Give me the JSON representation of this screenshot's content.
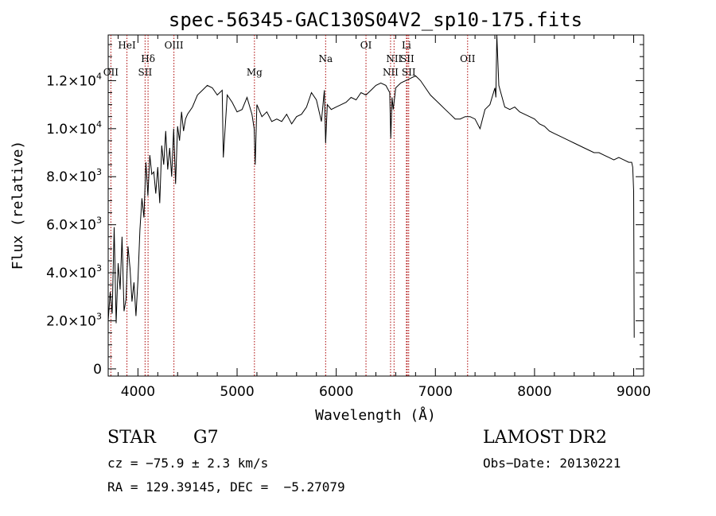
{
  "chart_data": {
    "type": "line",
    "title": "spec-56345-GAC130S04V2_sp10-175.fits",
    "xlabel": "Wavelength (Å)",
    "ylabel": "Flux (relative)",
    "xlim": [
      3700,
      9100
    ],
    "ylim": [
      -300,
      13900
    ],
    "xticks": [
      {
        "value": 4000,
        "label": "4000"
      },
      {
        "value": 5000,
        "label": "5000"
      },
      {
        "value": 6000,
        "label": "6000"
      },
      {
        "value": 7000,
        "label": "7000"
      },
      {
        "value": 8000,
        "label": "8000"
      },
      {
        "value": 9000,
        "label": "9000"
      }
    ],
    "yticks": [
      {
        "value": 0,
        "mantissa": "0",
        "exponent": ""
      },
      {
        "value": 2000,
        "mantissa": "2.0×10",
        "exponent": "3"
      },
      {
        "value": 4000,
        "mantissa": "4.0×10",
        "exponent": "3"
      },
      {
        "value": 6000,
        "mantissa": "6.0×10",
        "exponent": "3"
      },
      {
        "value": 8000,
        "mantissa": "8.0×10",
        "exponent": "3"
      },
      {
        "value": 10000,
        "mantissa": "1.0×10",
        "exponent": "4"
      },
      {
        "value": 12000,
        "mantissa": "1.2×10",
        "exponent": "4"
      }
    ],
    "spectrum": {
      "x": [
        3700,
        3720,
        3740,
        3760,
        3780,
        3800,
        3820,
        3840,
        3860,
        3880,
        3900,
        3920,
        3940,
        3960,
        3980,
        4000,
        4020,
        4040,
        4060,
        4080,
        4100,
        4120,
        4140,
        4160,
        4180,
        4200,
        4220,
        4240,
        4260,
        4280,
        4300,
        4320,
        4340,
        4360,
        4380,
        4400,
        4420,
        4440,
        4460,
        4480,
        4500,
        4550,
        4600,
        4650,
        4700,
        4750,
        4800,
        4850,
        4861,
        4900,
        4950,
        5000,
        5050,
        5100,
        5150,
        5172,
        5183,
        5200,
        5250,
        5300,
        5350,
        5400,
        5450,
        5500,
        5550,
        5600,
        5650,
        5700,
        5750,
        5800,
        5850,
        5880,
        5893,
        5910,
        5950,
        6000,
        6050,
        6100,
        6150,
        6200,
        6250,
        6300,
        6350,
        6400,
        6450,
        6500,
        6540,
        6550,
        6563,
        6575,
        6600,
        6650,
        6700,
        6750,
        6800,
        6850,
        6900,
        6950,
        7000,
        7050,
        7100,
        7150,
        7200,
        7250,
        7300,
        7350,
        7400,
        7450,
        7500,
        7550,
        7600,
        7610,
        7620,
        7640,
        7660,
        7680,
        7700,
        7750,
        7800,
        7850,
        7900,
        7950,
        8000,
        8050,
        8100,
        8150,
        8200,
        8250,
        8300,
        8350,
        8400,
        8450,
        8500,
        8550,
        8600,
        8650,
        8700,
        8750,
        8800,
        8850,
        8900,
        8950,
        8980,
        8990,
        9000,
        9005
      ],
      "y": [
        2000,
        3200,
        2300,
        5900,
        1900,
        4400,
        3300,
        5500,
        2400,
        2900,
        5100,
        4200,
        2800,
        3600,
        2200,
        3700,
        5800,
        7100,
        6300,
        8600,
        7200,
        8900,
        8100,
        8200,
        7300,
        8400,
        6900,
        9300,
        8500,
        9900,
        8300,
        9200,
        8000,
        10000,
        7700,
        10100,
        9500,
        10700,
        9900,
        10400,
        10600,
        10900,
        11400,
        11600,
        11800,
        11700,
        11400,
        11600,
        8800,
        11400,
        11100,
        10700,
        10800,
        11300,
        10600,
        10000,
        8500,
        11000,
        10500,
        10700,
        10300,
        10400,
        10300,
        10600,
        10200,
        10500,
        10600,
        10900,
        11500,
        11200,
        10300,
        11600,
        9400,
        11000,
        10800,
        10900,
        11000,
        11100,
        11300,
        11200,
        11500,
        11400,
        11600,
        11800,
        11900,
        11800,
        11500,
        9600,
        11300,
        10800,
        11700,
        11900,
        12000,
        12100,
        12200,
        12000,
        11700,
        11400,
        11200,
        11000,
        10800,
        10600,
        10400,
        10400,
        10500,
        10500,
        10400,
        10000,
        10800,
        11000,
        11700,
        11300,
        14000,
        11800,
        11500,
        11200,
        10900,
        10800,
        10900,
        10700,
        10600,
        10500,
        10400,
        10200,
        10100,
        9900,
        9800,
        9700,
        9600,
        9500,
        9400,
        9300,
        9200,
        9100,
        9000,
        9000,
        8900,
        8800,
        8700,
        8800,
        8700,
        8600,
        8600,
        8400,
        7400,
        1300
      ]
    },
    "lines": [
      {
        "name": "OII",
        "wave": 3727,
        "row": 3
      },
      {
        "name": "HeI",
        "wave": 3889,
        "row": 1
      },
      {
        "name": "Hδ",
        "wave": 4102,
        "row": 2
      },
      {
        "name": "SII",
        "wave": 4072,
        "row": 3
      },
      {
        "name": "OIII",
        "wave": 4363,
        "row": 1
      },
      {
        "name": "Mg",
        "wave": 5175,
        "row": 3
      },
      {
        "name": "Na",
        "wave": 5893,
        "row": 2
      },
      {
        "name": "OI",
        "wave": 6300,
        "row": 1
      },
      {
        "name": "NII",
        "wave": 6548,
        "row": 3
      },
      {
        "name": "NII",
        "wave": 6583,
        "row": 2
      },
      {
        "name": "Li",
        "wave": 6708,
        "row": 1
      },
      {
        "name": "SII",
        "wave": 6716,
        "row": 2
      },
      {
        "name": "SII",
        "wave": 6731,
        "row": 3
      },
      {
        "name": "OII",
        "wave": 7325,
        "row": 2
      }
    ],
    "line_marker_color": "#aa0000",
    "grid": false,
    "legend": "none"
  },
  "info": {
    "object_class": "STAR",
    "subclass": "G7",
    "redshift_text": "cz = −75.9 ± 2.3 km/s",
    "coords_text": "RA = 129.39145, DEC =  −5.27079",
    "survey": "LAMOST DR2",
    "obs_date_text": "Obs−Date: 20130221"
  }
}
